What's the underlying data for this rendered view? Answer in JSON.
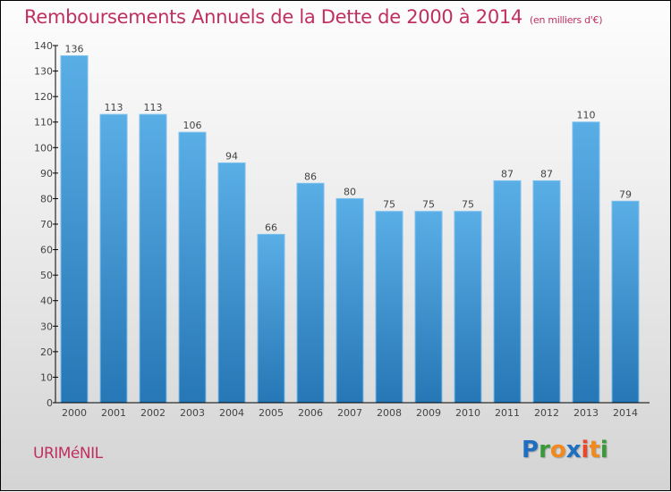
{
  "chart_data": {
    "type": "bar",
    "title": "Remboursements Annuels de la Dette de 2000 à 2014",
    "subtitle": "(en milliers d'€)",
    "xlabel": "",
    "ylabel": "",
    "categories": [
      "2000",
      "2001",
      "2002",
      "2003",
      "2004",
      "2005",
      "2006",
      "2007",
      "2008",
      "2009",
      "2010",
      "2011",
      "2012",
      "2013",
      "2014"
    ],
    "values": [
      136,
      113,
      113,
      106,
      94,
      66,
      86,
      80,
      75,
      75,
      75,
      87,
      87,
      110,
      79
    ],
    "ylim": [
      0,
      140
    ],
    "yticks": [
      0,
      10,
      20,
      30,
      40,
      50,
      60,
      70,
      80,
      90,
      100,
      110,
      120,
      130,
      140
    ],
    "grid": false,
    "legend": "none",
    "bar_color_top": "#5aaee6",
    "bar_color_bottom": "#2677b5"
  },
  "footer": {
    "commune": "URIMéNIL",
    "logo_letters": [
      {
        "ch": "P",
        "color": "#1f6fc0"
      },
      {
        "ch": "r",
        "color": "#3a9a3a"
      },
      {
        "ch": "o",
        "color": "#f08a1c"
      },
      {
        "ch": "x",
        "color": "#1f6fc0"
      },
      {
        "ch": "i",
        "color": "#e8492a"
      },
      {
        "ch": "t",
        "color": "#f08a1c"
      },
      {
        "ch": "i",
        "color": "#3a9a3a"
      }
    ]
  },
  "colors": {
    "title": "#c0305f",
    "axis": "#000000",
    "text": "#444444"
  }
}
